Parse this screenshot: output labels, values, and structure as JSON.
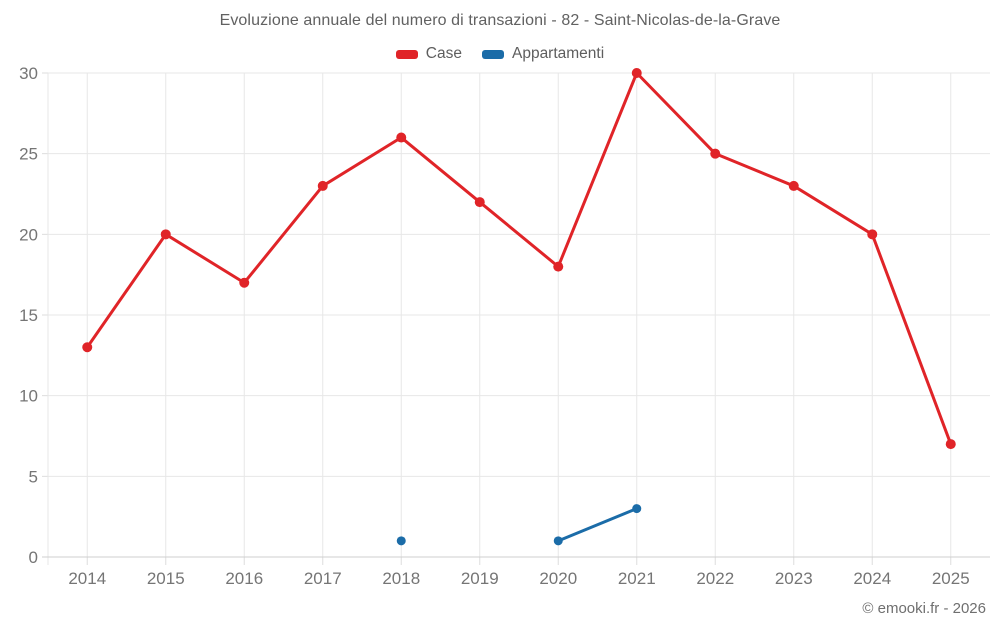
{
  "title": "Evoluzione annuale del numero di transazioni - 82 - Saint-Nicolas-de-la-Grave",
  "legend": {
    "items": [
      {
        "label": "Case",
        "color": "#e02428"
      },
      {
        "label": "Appartamenti",
        "color": "#1b6ca8"
      }
    ]
  },
  "footer": {
    "credit": "© emooki.fr - 2026"
  },
  "colors": {
    "case_red": "#e02428",
    "appartamenti_blue": "#1b6ca8",
    "tick_text": "#757575"
  },
  "chart_data": {
    "type": "line",
    "title": "Evoluzione annuale del numero di transazioni - 82 - Saint-Nicolas-de-la-Grave",
    "x": [
      2014,
      2015,
      2016,
      2017,
      2018,
      2019,
      2020,
      2021,
      2022,
      2023,
      2024,
      2025
    ],
    "series": [
      {
        "name": "Case",
        "color": "#e02428",
        "values": [
          13,
          20,
          17,
          23,
          26,
          22,
          18,
          30,
          25,
          23,
          20,
          7
        ]
      },
      {
        "name": "Appartamenti",
        "color": "#1b6ca8",
        "values": [
          null,
          null,
          null,
          null,
          1,
          null,
          1,
          3,
          null,
          null,
          null,
          null
        ]
      }
    ],
    "xlabel": "",
    "ylabel": "",
    "ylim": [
      0,
      30
    ],
    "yticks": [
      0,
      5,
      10,
      15,
      20,
      25,
      30
    ],
    "grid": true,
    "legend_position": "top"
  }
}
